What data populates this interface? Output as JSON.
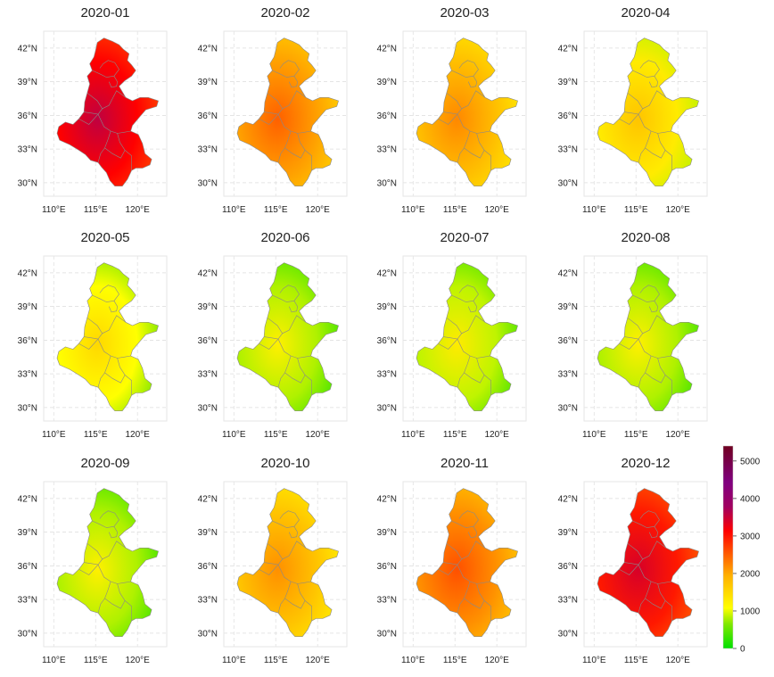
{
  "figure": {
    "panels": [
      {
        "title": "2020-01",
        "level": 0.58
      },
      {
        "title": "2020-02",
        "level": 0.38
      },
      {
        "title": "2020-03",
        "level": 0.33
      },
      {
        "title": "2020-04",
        "level": 0.24
      },
      {
        "title": "2020-05",
        "level": 0.2
      },
      {
        "title": "2020-06",
        "level": 0.15
      },
      {
        "title": "2020-07",
        "level": 0.16
      },
      {
        "title": "2020-08",
        "level": 0.15
      },
      {
        "title": "2020-09",
        "level": 0.15
      },
      {
        "title": "2020-10",
        "level": 0.32
      },
      {
        "title": "2020-11",
        "level": 0.4
      },
      {
        "title": "2020-12",
        "level": 0.55
      }
    ],
    "x_ticks": [
      "110°E",
      "115°E",
      "120°E"
    ],
    "x_tick_values": [
      110,
      115,
      120
    ],
    "y_ticks": [
      "42°N",
      "39°N",
      "36°N",
      "33°N",
      "30°N"
    ],
    "y_tick_values": [
      42,
      39,
      36,
      33,
      30
    ],
    "lon_range": [
      108.8,
      123.5
    ],
    "lat_range": [
      28.8,
      43.5
    ],
    "colorbar": {
      "ticks": [
        "5000",
        "4000",
        "3000",
        "2000",
        "1000",
        "0"
      ],
      "tick_values": [
        5000,
        4000,
        3000,
        2000,
        1000,
        0
      ],
      "range": [
        0,
        5400
      ],
      "colors": [
        "#00e000",
        "#7fe800",
        "#ffff00",
        "#ffb000",
        "#ff5000",
        "#ff0000",
        "#a00060",
        "#800080",
        "#700020"
      ]
    }
  }
}
